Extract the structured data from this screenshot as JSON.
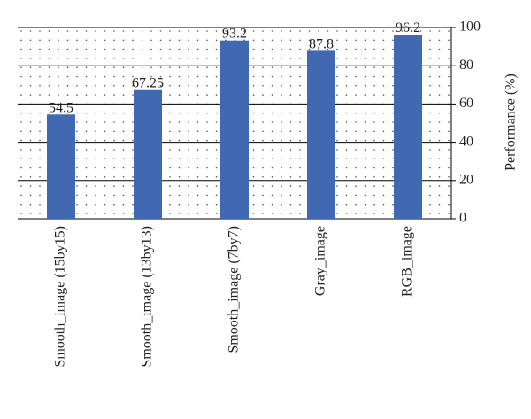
{
  "chart_data": {
    "type": "bar",
    "categories": [
      "Smooth_image (15by15)",
      "Smooth_image (13by13)",
      "Smooth_image (7by7)",
      "Gray_image",
      "RGB_image"
    ],
    "values": [
      54.5,
      67.25,
      93.2,
      87.8,
      96.2
    ],
    "data_labels": [
      "54.5",
      "67.25",
      "93.2",
      "87.8",
      "96.2"
    ],
    "ylabel": "Performance (%)",
    "ylim": [
      0,
      100
    ],
    "yticks": [
      "0",
      "20",
      "40",
      "60",
      "80",
      "100"
    ],
    "y_axis_side": "right",
    "grid": "dotted",
    "bar_color": "#4169b2"
  }
}
